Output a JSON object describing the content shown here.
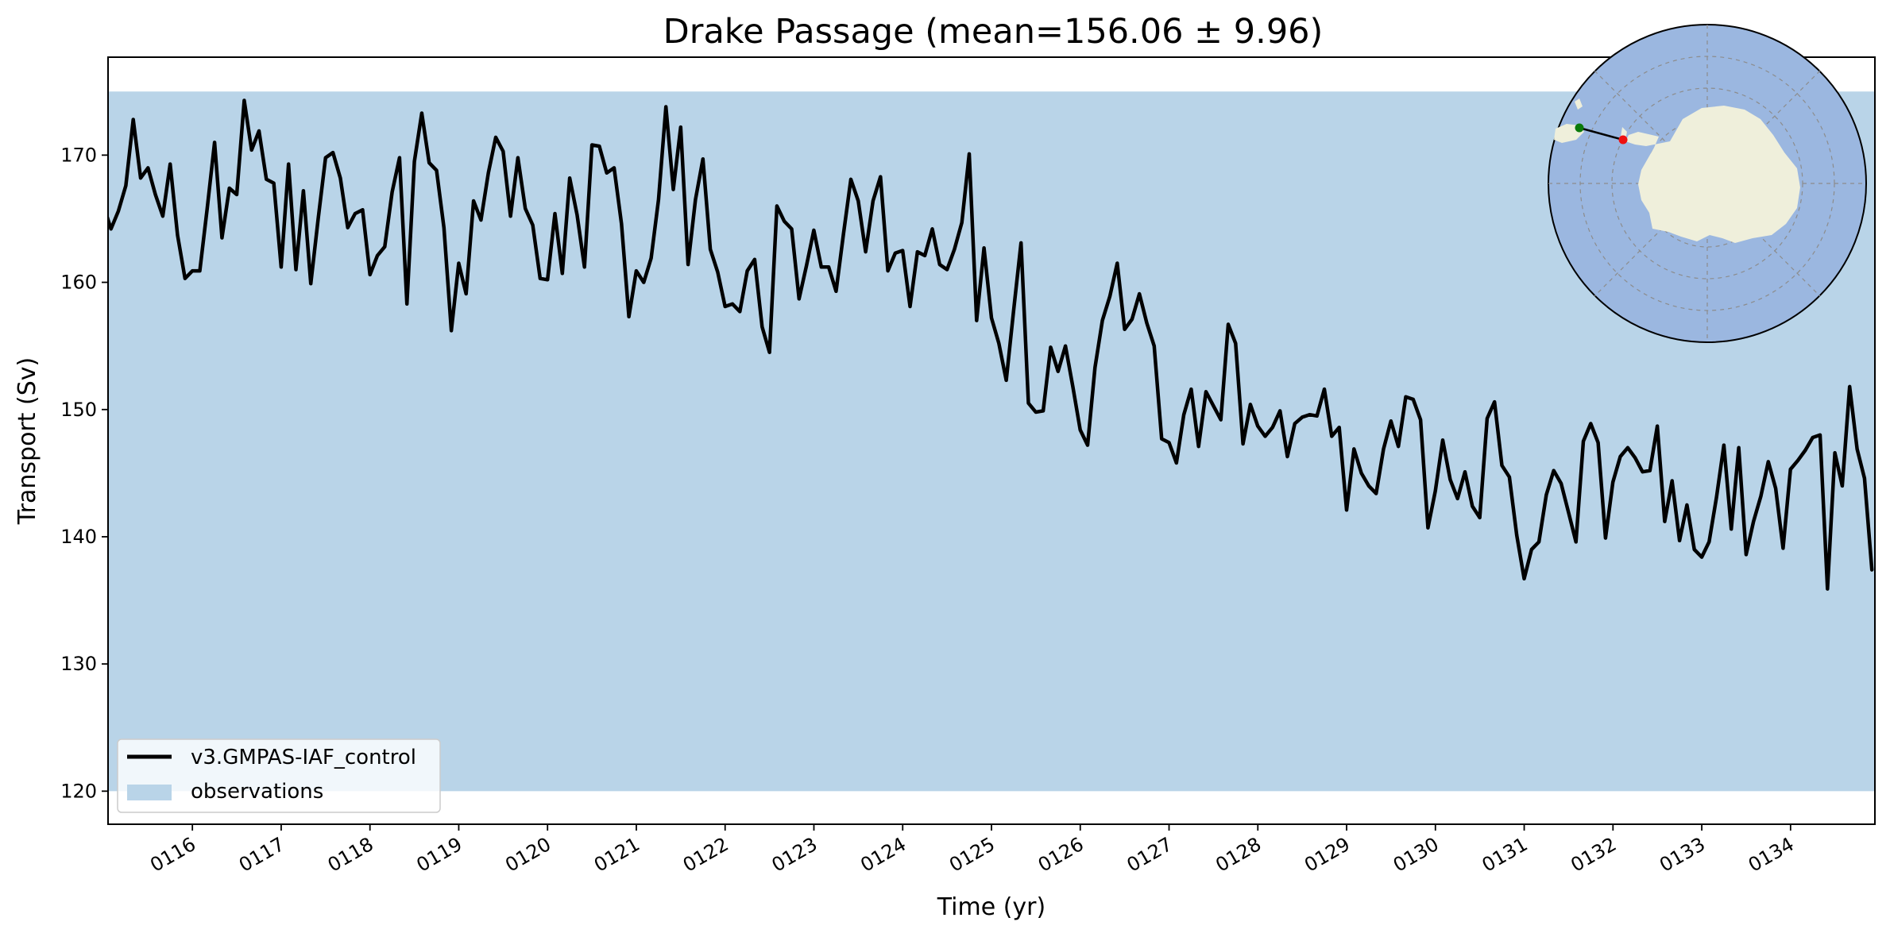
{
  "chart_data": {
    "type": "line",
    "title": "Drake Passage (mean=156.06 ± 9.96)",
    "xlabel": "Time (yr)",
    "ylabel": "Transport (Sv)",
    "xlim": [
      115.05,
      134.95
    ],
    "ylim": [
      117.4,
      177.7
    ],
    "x_ticks": [
      116,
      117,
      118,
      119,
      120,
      121,
      122,
      123,
      124,
      125,
      126,
      127,
      128,
      129,
      130,
      131,
      132,
      133,
      134
    ],
    "x_tick_labels": [
      "0116",
      "0117",
      "0118",
      "0119",
      "0120",
      "0121",
      "0122",
      "0123",
      "0124",
      "0125",
      "0126",
      "0127",
      "0128",
      "0129",
      "0130",
      "0131",
      "0132",
      "0133",
      "0134"
    ],
    "y_ticks": [
      120,
      130,
      140,
      150,
      160,
      170
    ],
    "y_tick_labels": [
      "120",
      "130",
      "140",
      "150",
      "160",
      "170"
    ],
    "grid": false,
    "legend_position": "lower-left",
    "observations_band": {
      "label": "observations",
      "min": 120,
      "max": 175,
      "color": "#b9d4e8"
    },
    "series": [
      {
        "name": "v3.GMPAS-IAF_control",
        "color": "#000000",
        "x_start": 115.0,
        "x_step": 0.08333,
        "values": [
          166.0,
          164.2,
          165.6,
          167.6,
          172.8,
          168.2,
          169.0,
          166.9,
          165.2,
          169.3,
          163.7,
          160.3,
          160.9,
          160.9,
          165.8,
          171.0,
          163.5,
          167.4,
          166.9,
          174.3,
          170.4,
          171.9,
          168.1,
          167.8,
          161.2,
          169.3,
          161.0,
          167.2,
          159.9,
          165.0,
          169.8,
          170.2,
          168.2,
          164.3,
          165.4,
          165.7,
          160.6,
          162.1,
          162.8,
          167.1,
          169.8,
          158.3,
          169.5,
          173.3,
          169.4,
          168.8,
          164.3,
          156.2,
          161.5,
          159.1,
          166.4,
          164.9,
          168.6,
          171.4,
          170.3,
          165.2,
          169.8,
          165.8,
          164.5,
          160.3,
          160.2,
          165.4,
          160.7,
          168.2,
          165.3,
          161.2,
          170.8,
          170.7,
          168.6,
          169.0,
          164.6,
          157.3,
          160.9,
          160.0,
          161.9,
          166.5,
          173.8,
          167.3,
          172.2,
          161.4,
          166.5,
          169.7,
          162.6,
          160.8,
          158.1,
          158.3,
          157.7,
          160.9,
          161.8,
          156.5,
          154.5,
          166.0,
          164.8,
          164.2,
          158.7,
          161.3,
          164.1,
          161.2,
          161.2,
          159.3,
          163.8,
          168.1,
          166.4,
          162.4,
          166.4,
          168.3,
          160.9,
          162.3,
          162.5,
          158.1,
          162.4,
          162.1,
          164.2,
          161.4,
          161.0,
          162.6,
          164.7,
          170.1,
          157.0,
          162.7,
          157.2,
          155.2,
          152.3,
          157.8,
          163.1,
          150.5,
          149.8,
          149.9,
          154.9,
          153.0,
          155.0,
          151.8,
          148.4,
          147.2,
          153.3,
          157.0,
          158.9,
          161.5,
          156.3,
          157.1,
          159.1,
          156.8,
          155.0,
          147.7,
          147.4,
          145.8,
          149.6,
          151.6,
          147.1,
          151.4,
          150.3,
          149.2,
          156.7,
          155.2,
          147.3,
          150.4,
          148.7,
          147.9,
          148.6,
          149.9,
          146.3,
          148.9,
          149.4,
          149.6,
          149.5,
          151.6,
          147.9,
          148.6,
          142.1,
          146.9,
          145.0,
          144.0,
          143.4,
          146.9,
          149.1,
          147.1,
          151.0,
          150.8,
          149.2,
          140.7,
          143.6,
          147.6,
          144.5,
          143.0,
          145.1,
          142.4,
          141.5,
          149.3,
          150.6,
          145.6,
          144.7,
          140.1,
          136.7,
          139.0,
          139.6,
          143.3,
          145.2,
          144.2,
          141.9,
          139.6,
          147.5,
          148.9,
          147.4,
          139.9,
          144.3,
          146.3,
          147.0,
          146.2,
          145.1,
          145.2,
          148.7,
          141.2,
          144.4,
          139.7,
          142.5,
          139.0,
          138.4,
          139.6,
          143.1,
          147.2,
          140.6,
          147.0,
          138.6,
          141.2,
          143.2,
          145.9,
          143.8,
          139.1,
          145.3,
          146.0,
          146.8,
          147.8,
          148.0,
          135.9,
          146.6,
          144.0,
          151.8,
          146.9,
          144.6,
          137.4
        ]
      }
    ],
    "inset_map": {
      "description_icon": "south-polar-map-icon",
      "ocean_color": "#9bb7e0",
      "land_color": "#efefdb",
      "transect_start_color": "#0a7a0a",
      "transect_end_color": "#ee1111"
    }
  }
}
